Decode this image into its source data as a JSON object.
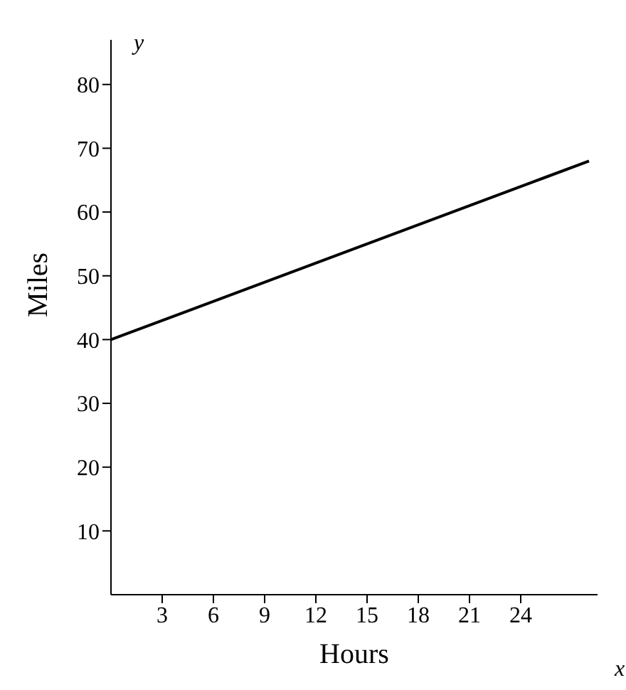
{
  "chart_data": {
    "type": "line",
    "xlabel": "Hours",
    "ylabel": "Miles",
    "annotations": [
      "y",
      "x"
    ],
    "x": [
      0,
      28
    ],
    "series": [
      {
        "color": "#000000",
        "values": [
          40,
          68
        ]
      }
    ],
    "xlim": [
      0,
      28.5
    ],
    "ylim": [
      0,
      87
    ],
    "xticks": [
      3,
      6,
      9,
      12,
      15,
      18,
      21,
      24
    ],
    "yticks": [
      10,
      20,
      30,
      40,
      50,
      60,
      70,
      80
    ],
    "grid": false,
    "legend": false,
    "marker": "none",
    "line_style": "solid"
  }
}
